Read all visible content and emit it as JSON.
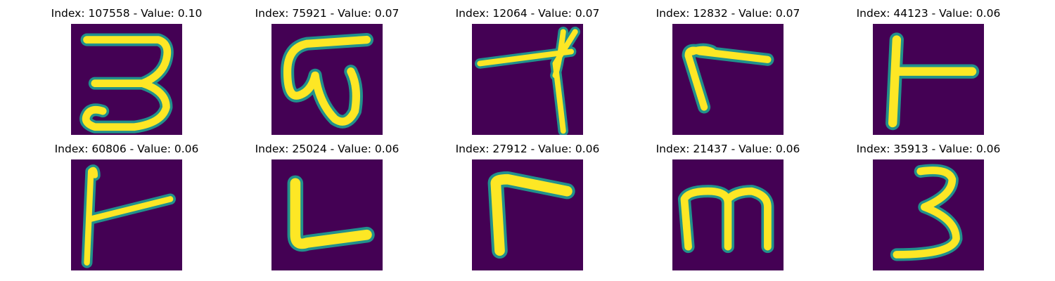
{
  "colors": {
    "background": "#440154",
    "stroke_core": "#fde725",
    "stroke_edge": "#21918c",
    "stroke_mid": "#5ec962"
  },
  "panels": [
    {
      "title": "Index: 107558 - Value: 0.10",
      "glyph": "3-flat-top"
    },
    {
      "title": "Index: 75921 - Value: 0.07",
      "glyph": "ω-curl"
    },
    {
      "title": "Index: 12064 - Value: 0.07",
      "glyph": "7-slanted"
    },
    {
      "title": "Index: 12832 - Value: 0.07",
      "glyph": "Γ-small"
    },
    {
      "title": "Index: 44123 - Value: 0.06",
      "glyph": "⊢-tee"
    },
    {
      "title": "Index: 60806 - Value: 0.06",
      "glyph": "⊢-slanted"
    },
    {
      "title": "Index: 25024 - Value: 0.06",
      "glyph": "L"
    },
    {
      "title": "Index: 27912 - Value: 0.06",
      "glyph": "Γ-large"
    },
    {
      "title": "Index: 21437 - Value: 0.06",
      "glyph": "m"
    },
    {
      "title": "Index: 35913 - Value: 0.06",
      "glyph": "3"
    }
  ]
}
